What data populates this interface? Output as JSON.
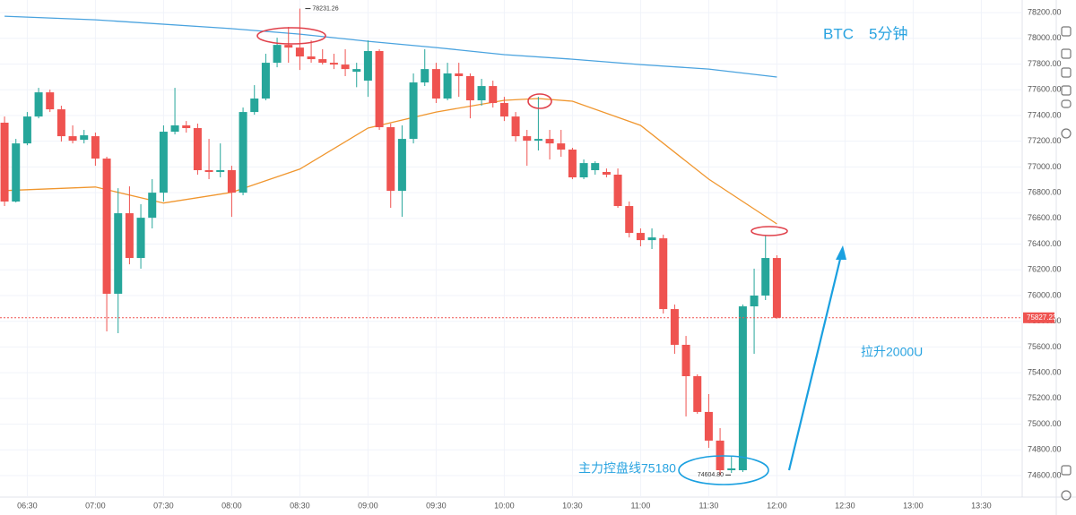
{
  "chart_data": {
    "type": "candlestick",
    "x": [
      "06:20",
      "06:25",
      "06:30",
      "06:35",
      "06:40",
      "06:45",
      "06:50",
      "06:55",
      "07:00",
      "07:05",
      "07:10",
      "07:15",
      "07:20",
      "07:25",
      "07:30",
      "07:35",
      "07:40",
      "07:45",
      "07:50",
      "07:55",
      "08:00",
      "08:05",
      "08:10",
      "08:15",
      "08:20",
      "08:25",
      "08:30",
      "08:35",
      "08:40",
      "08:45",
      "08:50",
      "08:55",
      "09:00",
      "09:05",
      "09:10",
      "09:15",
      "09:20",
      "09:25",
      "09:30",
      "09:35",
      "09:40",
      "09:45",
      "09:50",
      "09:55",
      "10:00",
      "10:05",
      "10:10",
      "10:15",
      "10:20",
      "10:25",
      "10:30",
      "10:35",
      "10:40",
      "10:45",
      "10:50",
      "10:55",
      "11:00",
      "11:05",
      "11:10",
      "11:15",
      "11:20",
      "11:25",
      "11:30",
      "11:35",
      "11:40",
      "11:45",
      "11:50",
      "11:55",
      "12:00"
    ],
    "open": [
      77344,
      76731,
      77183,
      77392,
      77580,
      77448,
      77239,
      77211,
      77239,
      77065,
      76014,
      76640,
      76292,
      76605,
      76800,
      77274,
      77323,
      77302,
      76975,
      76961,
      76975,
      76800,
      77427,
      77532,
      77810,
      77949,
      77928,
      77859,
      77838,
      77810,
      77796,
      77740,
      77671,
      77901,
      77309,
      76814,
      77218,
      77657,
      77761,
      77532,
      77727,
      77706,
      77518,
      77629,
      77497,
      77392,
      77239,
      77204,
      77218,
      77183,
      77135,
      76919,
      76975,
      76961,
      76940,
      76696,
      76487,
      76431,
      76445,
      75895,
      75617,
      75373,
      75095,
      74872,
      74642,
      74642,
      75916,
      76000,
      76292
    ],
    "high": [
      77392,
      77218,
      77427,
      77615,
      77601,
      77476,
      77323,
      77288,
      77267,
      77079,
      76835,
      76849,
      76710,
      76905,
      77323,
      77615,
      77357,
      77337,
      77218,
      77183,
      77009,
      77462,
      77636,
      77880,
      78005,
      78089,
      78231.26,
      77984,
      77915,
      77880,
      77915,
      77810,
      77984,
      77915,
      77337,
      77323,
      77727,
      77915,
      77810,
      77810,
      77810,
      77727,
      77685,
      77671,
      77545,
      77427,
      77288,
      77545,
      77288,
      77288,
      77149,
      77058,
      77044,
      76988,
      76988,
      76731,
      76522,
      76522,
      76473,
      75930,
      75686,
      75387,
      75234,
      74969,
      74746,
      75930,
      76209,
      76466,
      76313
    ],
    "low": [
      76696,
      76724,
      77169,
      77378,
      77427,
      77197,
      77183,
      77183,
      77009,
      75721,
      75707,
      76243,
      76209,
      76522,
      76731,
      77253,
      77267,
      76940,
      76905,
      76919,
      76612,
      76780,
      77406,
      77518,
      77775,
      77810,
      77754,
      77810,
      77796,
      77761,
      77706,
      77620,
      77545,
      77288,
      76682,
      76612,
      77183,
      77629,
      77497,
      77518,
      77545,
      77378,
      77476,
      77462,
      77357,
      77197,
      77009,
      77128,
      77058,
      77079,
      76905,
      76905,
      76940,
      76919,
      76682,
      76452,
      76383,
      76362,
      75860,
      75547,
      75060,
      75081,
      74816,
      74604.8,
      74621,
      74628,
      75547,
      75965,
      75820
    ],
    "close": [
      76731,
      77183,
      77392,
      77580,
      77448,
      77239,
      77204,
      77246,
      77065,
      76014,
      76640,
      76292,
      76605,
      76800,
      77274,
      77323,
      77302,
      76975,
      76961,
      76975,
      76800,
      77427,
      77532,
      77810,
      77949,
      77928,
      77859,
      77838,
      77810,
      77796,
      77761,
      77761,
      77901,
      77309,
      76814,
      77218,
      77657,
      77761,
      77532,
      77727,
      77706,
      77518,
      77629,
      77497,
      77392,
      77239,
      77204,
      77218,
      77183,
      77135,
      76919,
      77030,
      77030,
      76940,
      76696,
      76487,
      76431,
      76452,
      75895,
      75617,
      75373,
      75095,
      74872,
      74642,
      74656,
      75916,
      76000,
      76292,
      75827.23
    ],
    "up_color": "#26a69a",
    "down_color": "#ef5350",
    "lines": [
      {
        "color": "#4aa3df",
        "x": [
          "06:20",
          "07:00",
          "08:00",
          "08:30",
          "09:00",
          "09:30",
          "10:00",
          "10:30",
          "11:00",
          "11:30",
          "12:00"
        ],
        "values": [
          78172,
          78144,
          78075,
          78033,
          77977,
          77928,
          77873,
          77838,
          77796,
          77761,
          77699
        ]
      },
      {
        "color": "#f0962e",
        "x": [
          "06:20",
          "07:00",
          "07:30",
          "08:00",
          "08:30",
          "09:00",
          "09:30",
          "10:00",
          "10:15",
          "10:30",
          "11:00",
          "11:30",
          "12:00"
        ],
        "values": [
          76816,
          76844,
          76719,
          76802,
          76983,
          77302,
          77427,
          77518,
          77532,
          77511,
          77323,
          76905,
          76557
        ]
      }
    ],
    "xlim": [
      "06:18",
      "13:48"
    ],
    "xticks": [
      "06:30",
      "07:00",
      "07:30",
      "08:00",
      "08:30",
      "09:00",
      "09:30",
      "10:00",
      "10:30",
      "11:00",
      "11:30",
      "12:00",
      "12:30",
      "13:00",
      "13:30"
    ],
    "ylim": [
      74433,
      78298
    ],
    "yticks": [
      {
        "value": 74600,
        "label": "74600.00"
      },
      {
        "value": 74800,
        "label": "74800.00"
      },
      {
        "value": 75000,
        "label": "75000.00"
      },
      {
        "value": 75200,
        "label": "75200.00"
      },
      {
        "value": 75400,
        "label": "75400.00"
      },
      {
        "value": 75600,
        "label": "75600.00"
      },
      {
        "value": 75800,
        "label": "75800.00"
      },
      {
        "value": 76000,
        "label": "76000.00"
      },
      {
        "value": 76200,
        "label": "76200.00"
      },
      {
        "value": 76400,
        "label": "76400.00"
      },
      {
        "value": 76600,
        "label": "76600.00"
      },
      {
        "value": 76800,
        "label": "76800.00"
      },
      {
        "value": 77000,
        "label": "77000.00"
      },
      {
        "value": 77200,
        "label": "77200.00"
      },
      {
        "value": 77400,
        "label": "77400.00"
      },
      {
        "value": 77600,
        "label": "77600.00"
      },
      {
        "value": 77800,
        "label": "77800.00"
      },
      {
        "value": 78000,
        "label": "78000.00"
      },
      {
        "value": 78200,
        "label": "78200.00"
      }
    ],
    "high_label": {
      "value": 78231.26,
      "label": "78231.26"
    },
    "low_label": {
      "value": 74604.8,
      "label": "74604.80"
    },
    "last_price": {
      "value": 75827.23,
      "label": "75827.23"
    },
    "title": "BTC　5分钟",
    "annotations": [
      "拉升2000U",
      "主力控盘线75180"
    ]
  }
}
